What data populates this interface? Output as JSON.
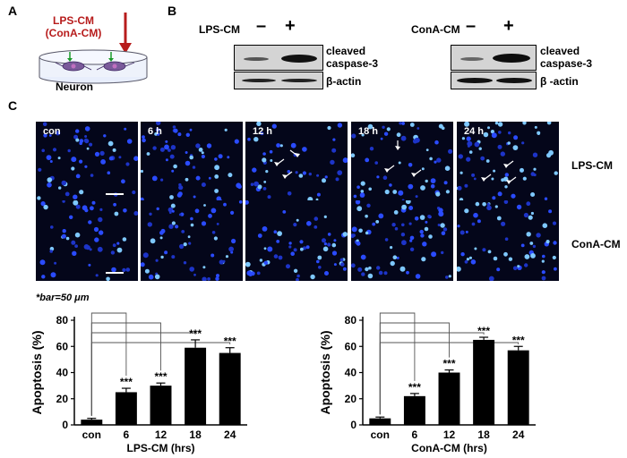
{
  "panel_labels": {
    "a": "A",
    "b": "B",
    "c": "C"
  },
  "panel_a": {
    "line1": "LPS-CM",
    "line2": "(ConA-CM)",
    "dish_label": "Neuron"
  },
  "panel_b": {
    "left": {
      "treatment": "LPS-CM",
      "minus": "–",
      "plus": "+",
      "label1": "cleaved",
      "label2": "caspase-3",
      "label3": "β-actin"
    },
    "right": {
      "treatment": "ConA-CM",
      "minus": "–",
      "plus": "+",
      "label1": "cleaved",
      "label2": "caspase-3",
      "label3": "β -actin"
    }
  },
  "panel_c": {
    "timepoints": [
      "con",
      "6 h",
      "12 h",
      "18 h",
      "24 h"
    ],
    "row_labels": [
      "LPS-CM",
      "ConA-CM"
    ],
    "scale_note": "*bar=50 μm"
  },
  "chart_data": [
    {
      "type": "bar",
      "categories": [
        "con",
        "6",
        "12",
        "18",
        "24"
      ],
      "values": [
        4,
        25,
        30,
        59,
        55
      ],
      "errors": [
        1,
        3,
        2,
        6,
        4
      ],
      "significance": [
        "",
        "***",
        "***",
        "***",
        "***"
      ],
      "xlabel": "LPS-CM (hrs)",
      "ylabel": "Apoptosis (%)",
      "ylim": [
        0,
        80
      ],
      "yticks": [
        0,
        20,
        40,
        60,
        80
      ]
    },
    {
      "type": "bar",
      "categories": [
        "con",
        "6",
        "12",
        "18",
        "24"
      ],
      "values": [
        5,
        22,
        40,
        65,
        57
      ],
      "errors": [
        1,
        2,
        2,
        2,
        3
      ],
      "significance": [
        "",
        "***",
        "***",
        "***",
        "***"
      ],
      "xlabel": "ConA-CM (hrs)",
      "ylabel": "Apoptosis (%)",
      "ylim": [
        0,
        80
      ],
      "yticks": [
        0,
        20,
        40,
        60,
        80
      ]
    }
  ],
  "colors": {
    "arrow_red": "#b71c1c",
    "nuclei": "#2a4bff",
    "bar_fill": "#000000",
    "arrow_white": "#ffffff"
  }
}
